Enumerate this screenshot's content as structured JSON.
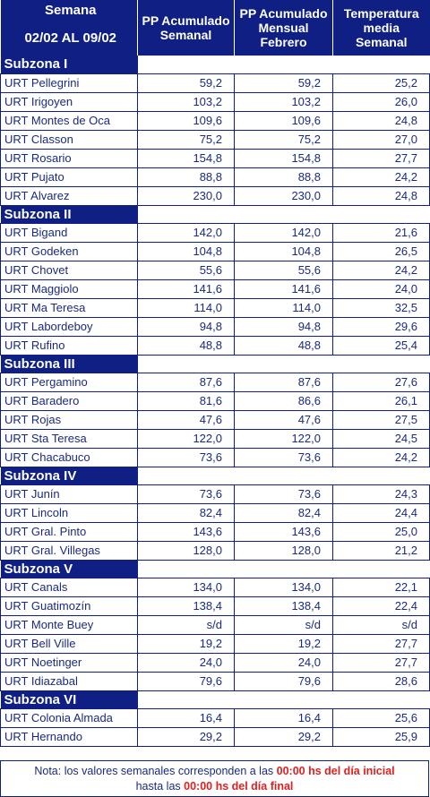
{
  "header": {
    "week_label": "Semana",
    "period": "02/02 AL 09/02",
    "columns": [
      {
        "line1": "PP Acumulado",
        "line2": "Semanal",
        "line3": ""
      },
      {
        "line1": "PP Acumulado",
        "line2": "Mensual",
        "line3": "Febrero"
      },
      {
        "line1": "Temperatura",
        "line2": "media",
        "line3": "Semanal"
      }
    ]
  },
  "zones": [
    {
      "name": "Subzona I",
      "rows": [
        {
          "name": "URT Pellegrini",
          "pp_week": "59,2",
          "pp_month": "59,2",
          "temp": "25,2"
        },
        {
          "name": "URT Irigoyen",
          "pp_week": "103,2",
          "pp_month": "103,2",
          "temp": "26,0"
        },
        {
          "name": "URT Montes de Oca",
          "pp_week": "109,6",
          "pp_month": "109,6",
          "temp": "24,8"
        },
        {
          "name": "URT Classon",
          "pp_week": "75,2",
          "pp_month": "75,2",
          "temp": "27,0"
        },
        {
          "name": "URT Rosario",
          "pp_week": "154,8",
          "pp_month": "154,8",
          "temp": "27,7"
        },
        {
          "name": "URT Pujato",
          "pp_week": "88,8",
          "pp_month": "88,8",
          "temp": "24,2"
        },
        {
          "name": "URT Alvarez",
          "pp_week": "230,0",
          "pp_month": "230,0",
          "temp": "24,8"
        }
      ]
    },
    {
      "name": "Subzona II",
      "rows": [
        {
          "name": "URT Bigand",
          "pp_week": "142,0",
          "pp_month": "142,0",
          "temp": "21,6"
        },
        {
          "name": "URT Godeken",
          "pp_week": "104,8",
          "pp_month": "104,8",
          "temp": "26,5"
        },
        {
          "name": "URT Chovet",
          "pp_week": "55,6",
          "pp_month": "55,6",
          "temp": "24,2"
        },
        {
          "name": "URT Maggiolo",
          "pp_week": "141,6",
          "pp_month": "141,6",
          "temp": "24,0"
        },
        {
          "name": "URT Ma Teresa",
          "pp_week": "114,0",
          "pp_month": "114,0",
          "temp": "32,5"
        },
        {
          "name": "URT Labordeboy",
          "pp_week": "94,8",
          "pp_month": "94,8",
          "temp": "29,6"
        },
        {
          "name": "URT Rufino",
          "pp_week": "48,8",
          "pp_month": "48,8",
          "temp": "25,4"
        }
      ]
    },
    {
      "name": "Subzona III",
      "rows": [
        {
          "name": "URT Pergamino",
          "pp_week": "87,6",
          "pp_month": "87,6",
          "temp": "27,6"
        },
        {
          "name": "URT Baradero",
          "pp_week": "81,6",
          "pp_month": "86,6",
          "temp": "26,1"
        },
        {
          "name": "URT Rojas",
          "pp_week": "47,6",
          "pp_month": "47,6",
          "temp": "27,5"
        },
        {
          "name": "URT Sta Teresa",
          "pp_week": "122,0",
          "pp_month": "122,0",
          "temp": "24,5"
        },
        {
          "name": "URT Chacabuco",
          "pp_week": "73,6",
          "pp_month": "73,6",
          "temp": "24,2"
        }
      ]
    },
    {
      "name": "Subzona IV",
      "rows": [
        {
          "name": "URT Junín",
          "pp_week": "73,6",
          "pp_month": "73,6",
          "temp": "24,3"
        },
        {
          "name": "URT Lincoln",
          "pp_week": "82,4",
          "pp_month": "82,4",
          "temp": "24,4"
        },
        {
          "name": "URT Gral. Pinto",
          "pp_week": "143,6",
          "pp_month": "143,6",
          "temp": "25,0"
        },
        {
          "name": "URT Gral. Villegas",
          "pp_week": "128,0",
          "pp_month": "128,0",
          "temp": "21,2"
        }
      ]
    },
    {
      "name": "Subzona V",
      "rows": [
        {
          "name": "URT Canals",
          "pp_week": "134,0",
          "pp_month": "134,0",
          "temp": "22,1"
        },
        {
          "name": "URT Guatimozín",
          "pp_week": "138,4",
          "pp_month": "138,4",
          "temp": "22,4"
        },
        {
          "name": "URT Monte Buey",
          "pp_week": "s/d",
          "pp_month": "s/d",
          "temp": "s/d"
        },
        {
          "name": "URT Bell Ville",
          "pp_week": "19,2",
          "pp_month": "19,2",
          "temp": "27,7"
        },
        {
          "name": "URT Noetinger",
          "pp_week": "24,0",
          "pp_month": "24,0",
          "temp": "27,7"
        },
        {
          "name": "URT Idiazabal",
          "pp_week": "79,6",
          "pp_month": "79,6",
          "temp": "28,6"
        }
      ]
    },
    {
      "name": "Subzona VI",
      "rows": [
        {
          "name": "URT Colonia Almada",
          "pp_week": "16,4",
          "pp_month": "16,4",
          "temp": "25,6"
        },
        {
          "name": "URT Hernando",
          "pp_week": "29,2",
          "pp_month": "29,2",
          "temp": "25,9"
        }
      ]
    }
  ],
  "note": {
    "text1": "Nota: los valores semanales corresponden a las ",
    "red1": "00:00 hs del día inicial",
    "text2": "hasta las ",
    "red2": "00:00 hs del día final"
  },
  "colors": {
    "header_bg": "#0f1f84",
    "text": "#1a2a80",
    "note_red": "#e02020"
  }
}
